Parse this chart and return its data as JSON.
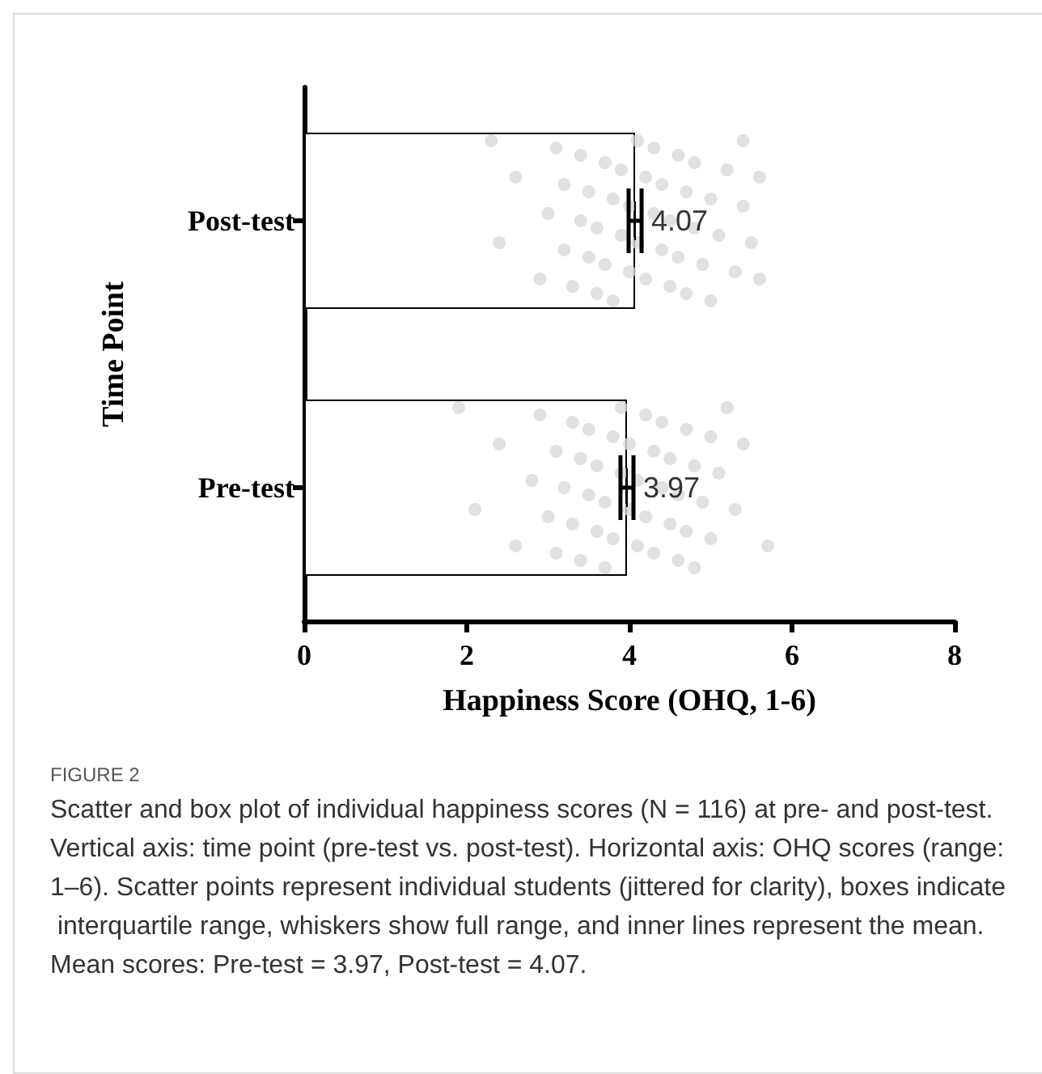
{
  "chart_data": {
    "type": "bar",
    "orientation": "horizontal",
    "categories": [
      "Post-test",
      "Pre-test"
    ],
    "xlabel": "Happiness Score (OHQ, 1-6)",
    "ylabel": "Time Point",
    "xlim": [
      0,
      8
    ],
    "xticks": [
      0,
      2,
      4,
      6,
      8
    ],
    "series": [
      {
        "color": "#ffffff",
        "values": [
          4.07,
          3.97
        ],
        "errors": [
          0.08,
          0.08
        ],
        "value_labels": [
          "4.07",
          "3.97"
        ]
      },
      {
        "type": "scatter",
        "color": "#d9d9d9",
        "x": [
          "Post-test",
          "Post-test",
          "Post-test",
          "Post-test",
          "Post-test",
          "Post-test",
          "Post-test",
          "Post-test",
          "Post-test",
          "Post-test",
          "Post-test",
          "Post-test",
          "Post-test",
          "Post-test",
          "Post-test",
          "Post-test",
          "Post-test",
          "Post-test",
          "Post-test",
          "Post-test",
          "Post-test",
          "Post-test",
          "Post-test",
          "Post-test",
          "Post-test",
          "Post-test",
          "Post-test",
          "Post-test",
          "Post-test",
          "Post-test",
          "Post-test",
          "Post-test",
          "Post-test",
          "Post-test",
          "Post-test",
          "Post-test",
          "Post-test",
          "Post-test",
          "Post-test",
          "Post-test",
          "Post-test",
          "Post-test",
          "Post-test",
          "Post-test",
          "Post-test",
          "Post-test",
          "Post-test",
          "Post-test",
          "Post-test",
          "Post-test"
        ],
        "values": [
          2.3,
          2.4,
          2.6,
          2.9,
          3.0,
          3.1,
          3.2,
          3.2,
          3.3,
          3.4,
          3.4,
          3.5,
          3.5,
          3.6,
          3.6,
          3.7,
          3.7,
          3.8,
          3.8,
          3.9,
          3.9,
          4.0,
          4.0,
          4.1,
          4.1,
          4.2,
          4.2,
          4.3,
          4.3,
          4.4,
          4.4,
          4.5,
          4.5,
          4.6,
          4.6,
          4.7,
          4.7,
          4.8,
          4.8,
          4.9,
          5.0,
          5.0,
          5.1,
          5.2,
          5.3,
          5.4,
          5.4,
          5.5,
          5.6,
          5.6
        ]
      },
      {
        "type": "scatter",
        "color": "#d9d9d9",
        "x": [
          "Pre-test",
          "Pre-test",
          "Pre-test",
          "Pre-test",
          "Pre-test",
          "Pre-test",
          "Pre-test",
          "Pre-test",
          "Pre-test",
          "Pre-test",
          "Pre-test",
          "Pre-test",
          "Pre-test",
          "Pre-test",
          "Pre-test",
          "Pre-test",
          "Pre-test",
          "Pre-test",
          "Pre-test",
          "Pre-test",
          "Pre-test",
          "Pre-test",
          "Pre-test",
          "Pre-test",
          "Pre-test",
          "Pre-test",
          "Pre-test",
          "Pre-test",
          "Pre-test",
          "Pre-test",
          "Pre-test",
          "Pre-test",
          "Pre-test",
          "Pre-test",
          "Pre-test",
          "Pre-test",
          "Pre-test",
          "Pre-test",
          "Pre-test",
          "Pre-test",
          "Pre-test",
          "Pre-test",
          "Pre-test",
          "Pre-test",
          "Pre-test",
          "Pre-test",
          "Pre-test",
          "Pre-test",
          "Pre-test",
          "Pre-test"
        ],
        "values": [
          1.9,
          2.1,
          2.4,
          2.6,
          2.8,
          2.9,
          3.0,
          3.1,
          3.1,
          3.2,
          3.3,
          3.3,
          3.4,
          3.4,
          3.5,
          3.5,
          3.6,
          3.6,
          3.7,
          3.7,
          3.8,
          3.8,
          3.9,
          3.9,
          4.0,
          4.0,
          4.1,
          4.1,
          4.2,
          4.2,
          4.3,
          4.3,
          4.4,
          4.4,
          4.5,
          4.5,
          4.6,
          4.6,
          4.7,
          4.7,
          4.8,
          4.8,
          4.9,
          5.0,
          5.0,
          5.1,
          5.2,
          5.3,
          5.4,
          5.7
        ]
      }
    ],
    "annotations": [
      "FIGURE 2",
      "Scatter and box plot of individual happiness scores (N = 116) at pre- and post-test. Vertical axis: time point (pre-test vs. post-test). Horizontal axis: OHQ scores (range: 1–6). Scatter points represent individual students (jittered for clarity), boxes indicate interquartile range, whiskers show full range, and inner lines represent the mean. Mean scores: Pre-test = 3.97, Post-test = 4.07."
    ]
  }
}
